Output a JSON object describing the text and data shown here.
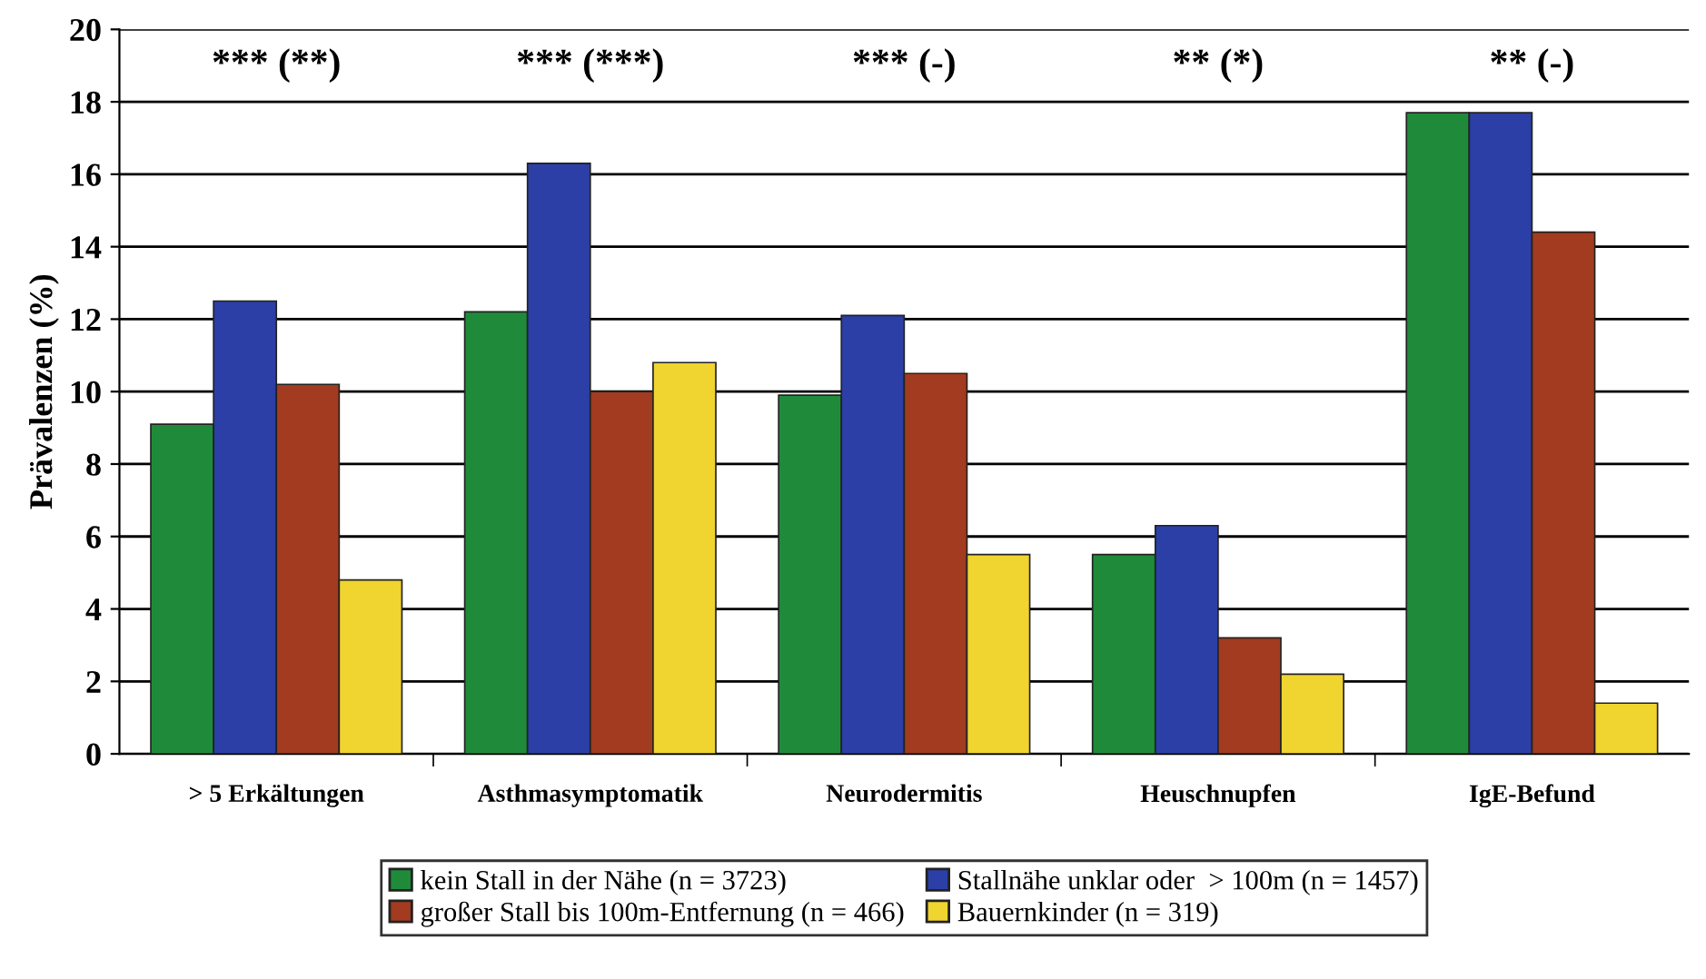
{
  "chart_data": {
    "type": "bar",
    "ylabel": "Prävalenzen (%)",
    "categories": [
      "> 5 Erkältungen",
      "Asthmasymptomatik",
      "Neurodermitis",
      "Heuschnupfen",
      "IgE-Befund"
    ],
    "series": [
      {
        "name": "kein Stall in der Nähe (n = 3723)",
        "color": "#1f8b3a",
        "values": [
          9.1,
          12.2,
          9.9,
          5.5,
          17.7
        ]
      },
      {
        "name": "Stallnähe unklar oder  > 100m (n = 1457)",
        "color": "#2b3fa6",
        "values": [
          12.5,
          16.3,
          12.1,
          6.3,
          17.7
        ]
      },
      {
        "name": "großer Stall bis 100m-Entfernung (n = 466)",
        "color": "#a23b1f",
        "values": [
          10.2,
          10.0,
          10.5,
          3.2,
          14.4
        ]
      },
      {
        "name": "Bauernkinder (n = 319)",
        "color": "#f0d430",
        "values": [
          4.8,
          10.8,
          5.5,
          2.2,
          1.4
        ]
      }
    ],
    "ylim": [
      0,
      20
    ],
    "yticks": [
      0,
      2,
      4,
      6,
      8,
      10,
      12,
      14,
      16,
      18,
      20
    ],
    "grid": "y",
    "legend": "bottom",
    "annotations": [
      "*** (**)",
      "*** (***)",
      "*** (-)",
      "** (*)",
      "** (-)"
    ]
  }
}
